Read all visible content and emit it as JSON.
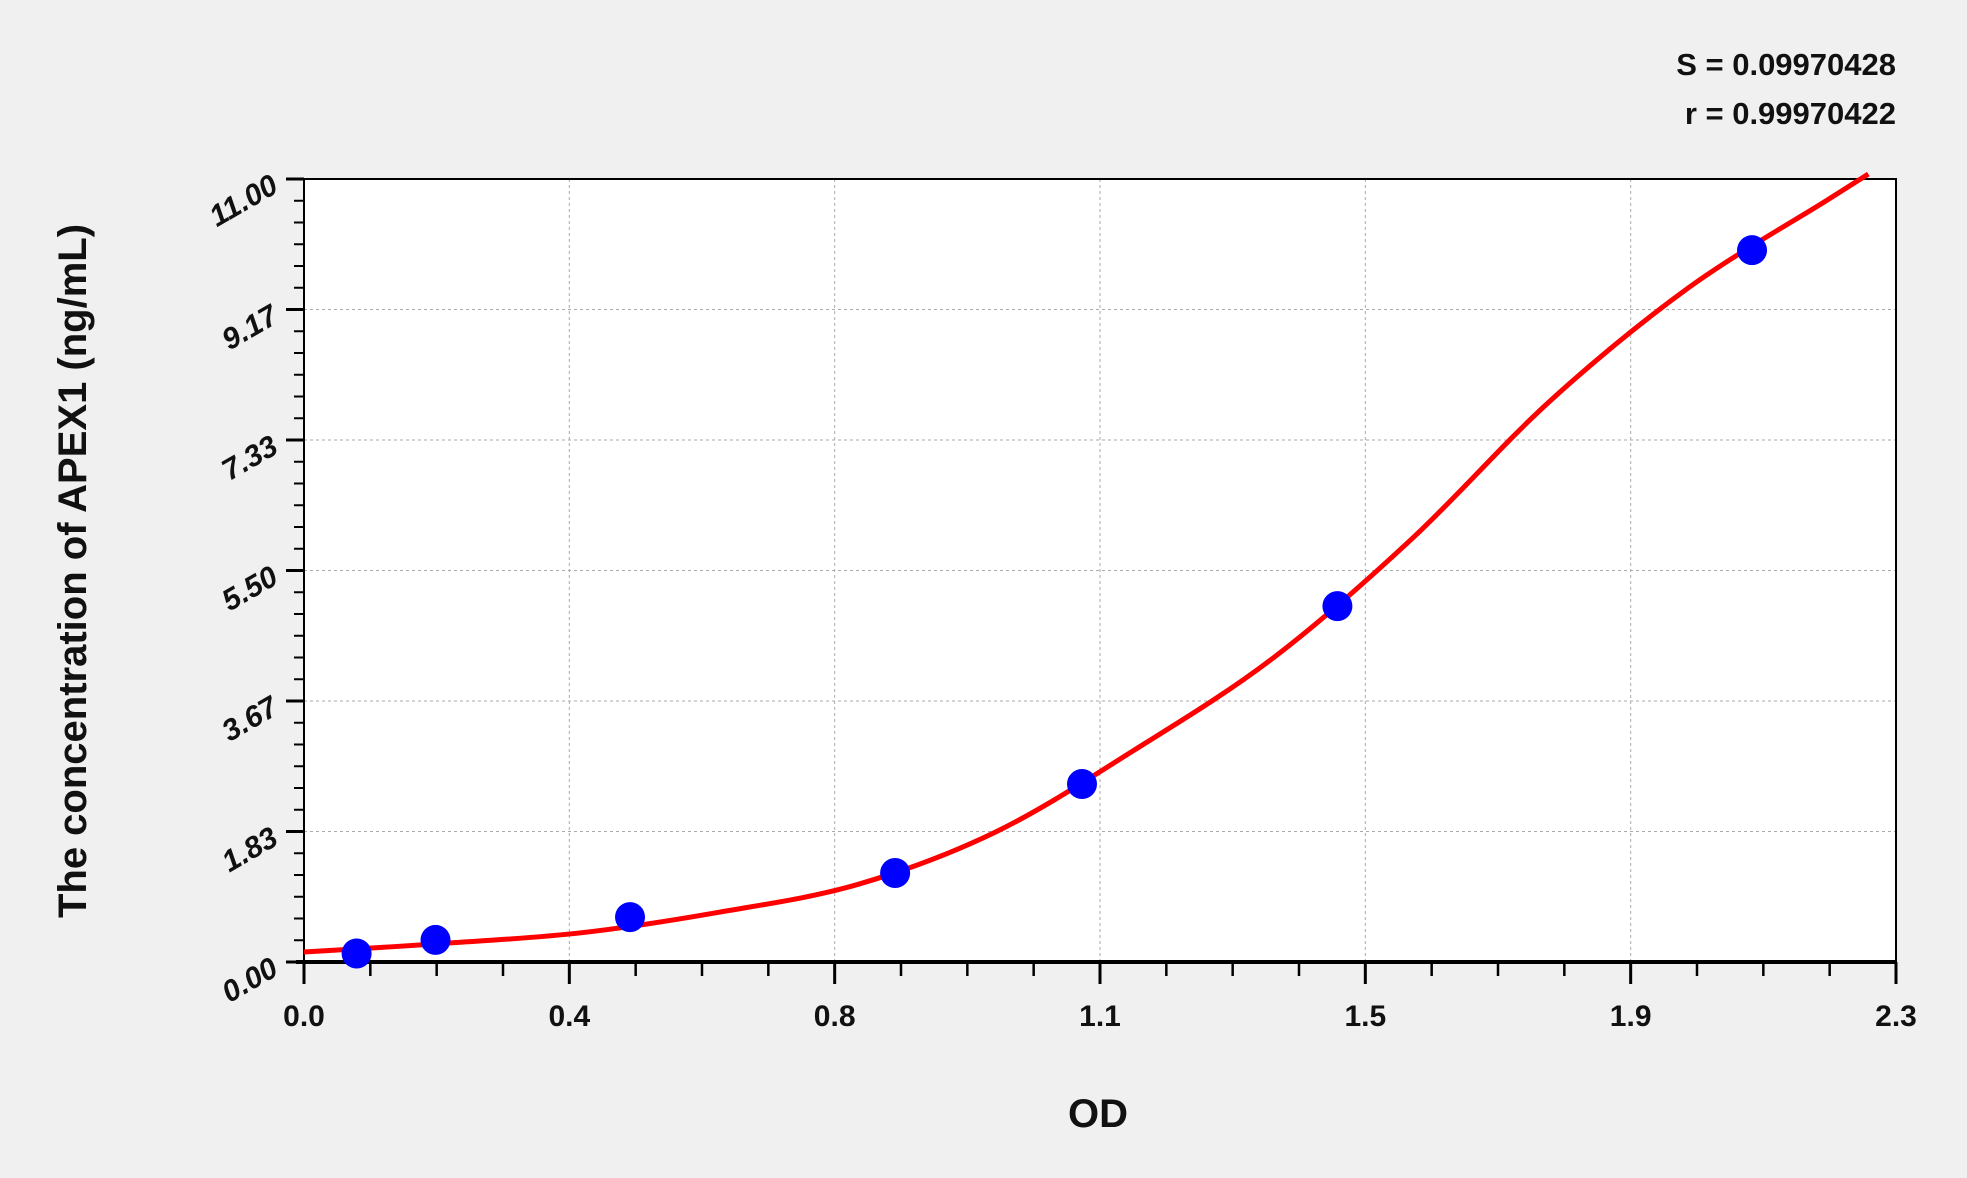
{
  "chart_data": {
    "type": "scatter",
    "title": "",
    "xlabel": "OD",
    "ylabel": "The concentration of APEX1 (ng/mL)",
    "xlim": [
      0,
      2.3
    ],
    "ylim": [
      0,
      11
    ],
    "x_ticks": [
      "0.0",
      "0.4",
      "0.8",
      "1.1",
      "1.5",
      "1.9",
      "2.3"
    ],
    "y_ticks": [
      "0.00",
      "1.83",
      "3.67",
      "5.50",
      "7.33",
      "9.17",
      "11.00"
    ],
    "grid": true,
    "annotations": [
      "S = 0.09970428",
      "r = 0.99970422"
    ],
    "points": {
      "x": [
        0.076,
        0.19,
        0.471,
        0.854,
        1.124,
        1.493,
        2.092
      ],
      "y": [
        0.12,
        0.31,
        0.63,
        1.25,
        2.5,
        5.0,
        10.0
      ],
      "color": "#0000ff"
    },
    "fit_curve": {
      "x": [
        0,
        0.2,
        0.4,
        0.6,
        0.8,
        1.0,
        1.2,
        1.4,
        1.6,
        1.8,
        2.0,
        2.2,
        2.26
      ],
      "y": [
        0.14,
        0.26,
        0.41,
        0.7,
        1.09,
        1.83,
        2.98,
        4.27,
        5.94,
        7.88,
        9.47,
        10.7,
        11.07
      ],
      "color": "#ff0000"
    }
  }
}
